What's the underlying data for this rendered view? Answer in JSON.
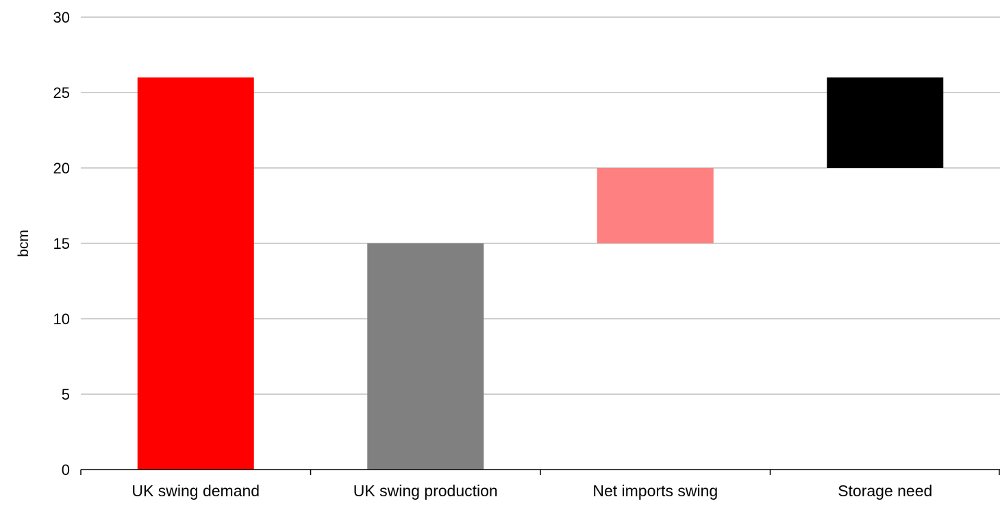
{
  "chart_data": {
    "type": "bar",
    "subtype": "waterfall",
    "categories": [
      "UK swing demand",
      "UK swing production",
      "Net imports swing",
      "Storage need"
    ],
    "bars": [
      {
        "category": "UK swing demand",
        "start": 0,
        "end": 26,
        "color": "#ff0000"
      },
      {
        "category": "UK swing production",
        "start": 0,
        "end": 15,
        "color": "#808080"
      },
      {
        "category": "Net imports swing",
        "start": 15,
        "end": 20,
        "color": "#ff8080"
      },
      {
        "category": "Storage need",
        "start": 20,
        "end": 26,
        "color": "#000000"
      }
    ],
    "ylabel": "bcm",
    "ylim": [
      0,
      30
    ],
    "yticks": [
      "0",
      "5",
      "10",
      "15",
      "20",
      "25",
      "30"
    ],
    "grid": true,
    "legend": "none"
  }
}
